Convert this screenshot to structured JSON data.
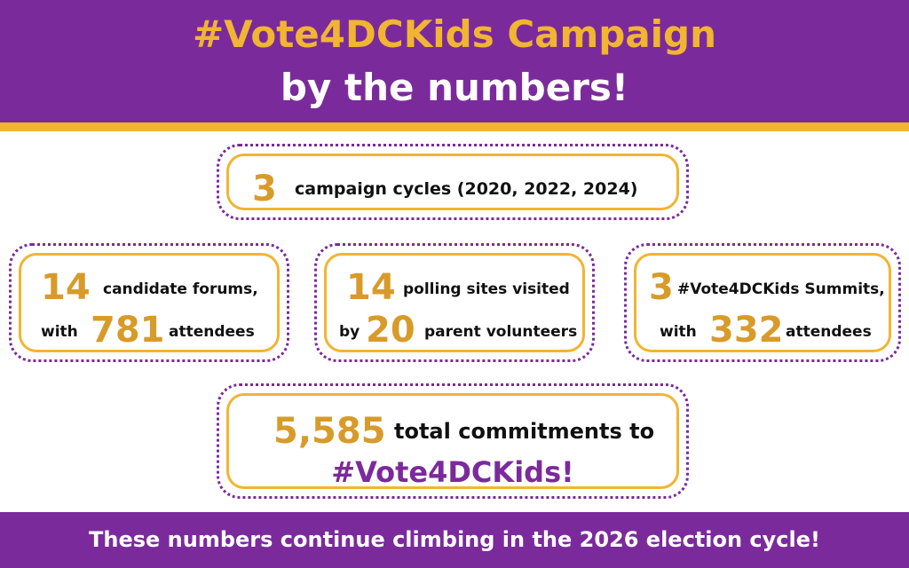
{
  "header": {
    "title_line1": "#Vote4DCKids Campaign",
    "title_line2": "by the numbers!"
  },
  "stats": {
    "cycles": {
      "number": "3",
      "text": "campaign cycles (2020, 2022, 2024)"
    },
    "forums": {
      "number": "14",
      "text": "candidate forums,",
      "prefix": "with",
      "number2": "781",
      "suffix": "attendees"
    },
    "polling": {
      "number": "14",
      "text": "polling sites visited",
      "prefix": "by",
      "number2": "20",
      "suffix": "parent volunteers"
    },
    "summits": {
      "number": "3",
      "text": "#Vote4DCKids Summits,",
      "prefix": "with",
      "number2": "332",
      "suffix": "attendees"
    },
    "commitments": {
      "number": "5,585",
      "text": "total commitments to",
      "hashtag": "#Vote4DCKids!"
    }
  },
  "footer": {
    "text": "These numbers continue climbing in the 2026 election cycle!"
  },
  "colors": {
    "purple": "#7b2a9c",
    "gold": "#f1b531",
    "number_gold": "#d89b2a"
  }
}
